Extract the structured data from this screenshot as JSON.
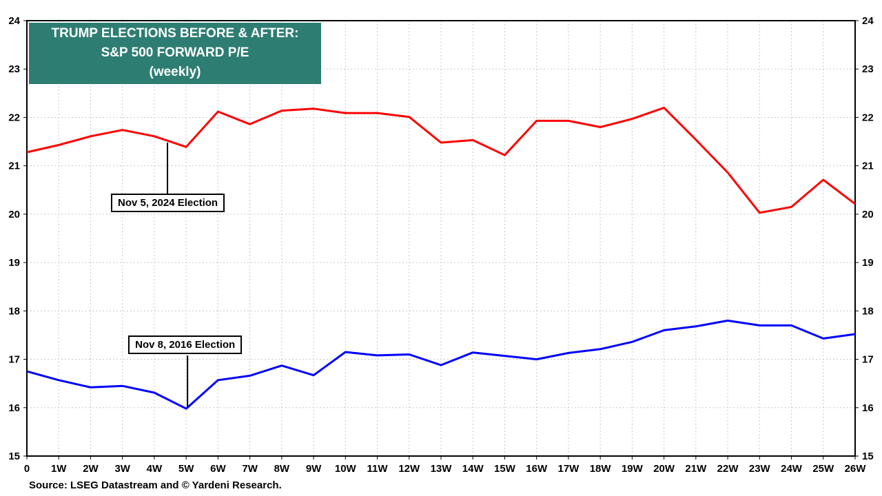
{
  "title": {
    "line1": "TRUMP ELECTIONS BEFORE & AFTER:",
    "line2": "S&P 500 FORWARD P/E",
    "line3": "(weekly)"
  },
  "source": "Source: LSEG Datastream and © Yardeni Research.",
  "colors": {
    "title_bg": "#2e7d72",
    "series_2024": "#ff0000",
    "series_2016": "#0000ff",
    "grid": "#c8c8c8"
  },
  "chart_data": {
    "type": "line",
    "title": "TRUMP ELECTIONS BEFORE & AFTER: S&P 500 FORWARD P/E (weekly)",
    "xlabel": "",
    "ylabel": "",
    "categories": [
      "0",
      "1W",
      "2W",
      "3W",
      "4W",
      "5W",
      "6W",
      "7W",
      "8W",
      "9W",
      "10W",
      "11W",
      "12W",
      "13W",
      "14W",
      "15W",
      "16W",
      "17W",
      "18W",
      "19W",
      "20W",
      "21W",
      "22W",
      "23W",
      "24W",
      "25W",
      "26W"
    ],
    "ylim": [
      15,
      24
    ],
    "yticks": [
      15,
      16,
      17,
      18,
      19,
      20,
      21,
      22,
      23,
      24
    ],
    "grid": true,
    "series": [
      {
        "name": "Nov 5, 2024 Election",
        "color": "#ff0000",
        "values": [
          21.28,
          21.43,
          21.61,
          21.74,
          21.61,
          21.39,
          22.12,
          21.86,
          22.14,
          22.18,
          22.09,
          22.09,
          22.01,
          21.48,
          21.53,
          21.22,
          21.93,
          21.93,
          21.8,
          21.97,
          22.2,
          21.54,
          20.86,
          20.03,
          20.15,
          20.71,
          20.21
        ]
      },
      {
        "name": "Nov 8, 2016 Election",
        "color": "#0000ff",
        "values": [
          16.75,
          16.57,
          16.42,
          16.45,
          16.31,
          15.98,
          16.57,
          16.66,
          16.87,
          16.67,
          17.15,
          17.08,
          17.1,
          16.88,
          17.14,
          17.07,
          17.0,
          17.13,
          17.21,
          17.36,
          17.6,
          17.68,
          17.8,
          17.7,
          17.7,
          17.43,
          17.52
        ]
      }
    ],
    "annotations": [
      {
        "text": "Nov 5, 2024 Election",
        "series": 0,
        "x": "4W"
      },
      {
        "text": "Nov 8, 2016 Election",
        "series": 1,
        "x": "5W"
      }
    ]
  }
}
